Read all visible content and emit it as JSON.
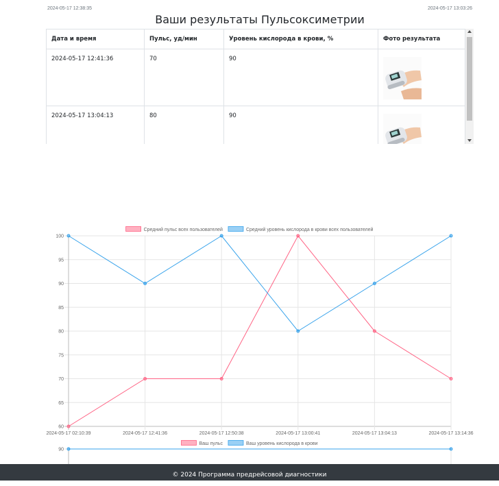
{
  "header": {
    "timestamp_left": "2024-05-17 12:38:35",
    "timestamp_right": "2024-05-17 13:03:26",
    "title": "Ваши результаты Пульсоксиметрии"
  },
  "table": {
    "columns": [
      "Дата и время",
      "Пульс, уд/мин",
      "Уровень кислорода в крови, %",
      "Фото результата"
    ],
    "rows": [
      {
        "datetime": "2024-05-17 12:41:36",
        "pulse": "70",
        "oxygen": "90",
        "photo_icon": "pulse-oximeter-photo"
      },
      {
        "datetime": "2024-05-17 13:04:13",
        "pulse": "80",
        "oxygen": "90",
        "photo_icon": "pulse-oximeter-photo"
      }
    ]
  },
  "chart_data": [
    {
      "type": "line",
      "legend_placement": "top",
      "categories": [
        "2024-05-17 02:10:39",
        "2024-05-17 12:41:36",
        "2024-05-17 12:50:38",
        "2024-05-17 13:00:41",
        "2024-05-17 13:04:13",
        "2024-05-17 13:14:36"
      ],
      "series": [
        {
          "name": "Средний пульс всех пользователей",
          "color": "#ff6384",
          "values": [
            60,
            70,
            70,
            100,
            80,
            70
          ]
        },
        {
          "name": "Средний уровень кислорода в крови всех пользователей",
          "color": "#36a2eb",
          "values": [
            100,
            90,
            100,
            80,
            90,
            100
          ]
        }
      ],
      "ylim": [
        60,
        100
      ],
      "yticks": [
        60,
        65,
        70,
        75,
        80,
        85,
        90,
        95,
        100
      ],
      "grid": true
    },
    {
      "type": "line",
      "legend_placement": "top",
      "series": [
        {
          "name": "Ваш пульс",
          "color": "#ff6384",
          "values": []
        },
        {
          "name": "Ваш уровень кислорода в крови",
          "color": "#36a2eb",
          "values": [
            90,
            90
          ]
        }
      ],
      "yticks": [
        90
      ],
      "grid": true
    }
  ],
  "footer": {
    "text": "© 2024 Программа предрейсовой диагностики"
  }
}
